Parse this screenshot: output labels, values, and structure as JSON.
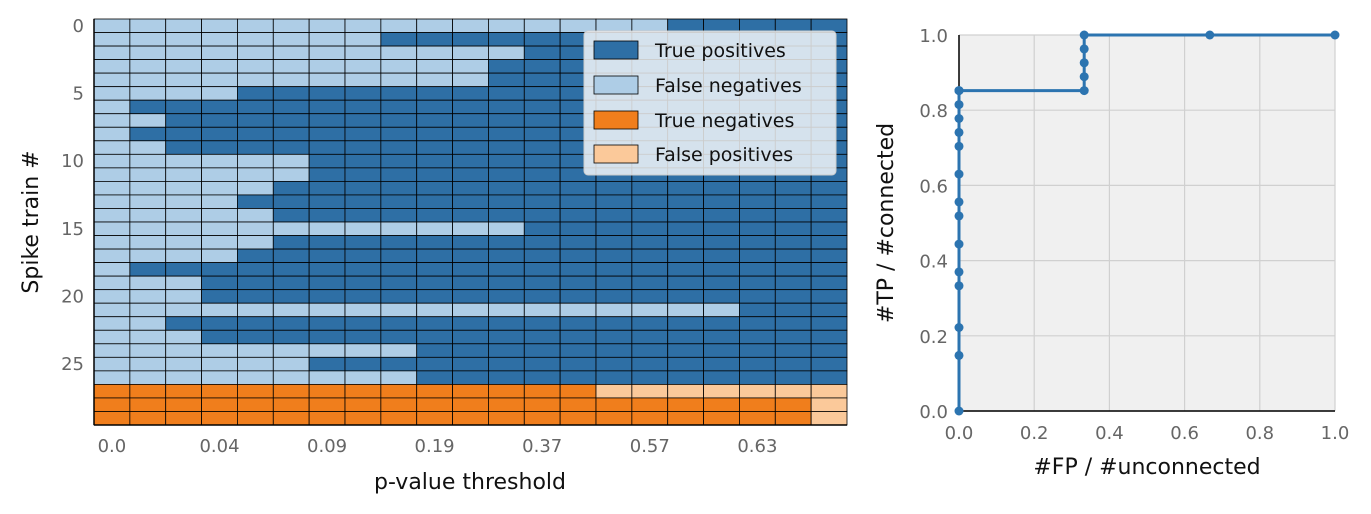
{
  "chart_data": [
    {
      "type": "heatmap",
      "xlabel": "p-value threshold",
      "ylabel": "Spike train #",
      "x_tick_labels": [
        "0.0",
        "0.04",
        "0.09",
        "0.19",
        "0.37",
        "0.57",
        "0.63"
      ],
      "y_tick_labels": [
        "0",
        "5",
        "10",
        "15",
        "20",
        "25"
      ],
      "legend_placement": "top-right",
      "categories": [
        {
          "code": "TP",
          "name": "True positives",
          "color": "#2e6fa5"
        },
        {
          "code": "FN",
          "name": "False negatives",
          "color": "#aecde6"
        },
        {
          "code": "TN",
          "name": "True negatives",
          "color": "#f07e1c"
        },
        {
          "code": "FP",
          "name": "False positives",
          "color": "#fbc99a"
        }
      ],
      "n_columns": 21,
      "first_positive_column": [
        16,
        8,
        12,
        11,
        11,
        4,
        1,
        2,
        1,
        2,
        6,
        6,
        5,
        4,
        5,
        12,
        5,
        4,
        1,
        3,
        3,
        18,
        2,
        3,
        9,
        6,
        9
      ],
      "first_false_positive_column": [
        14,
        20,
        20
      ]
    },
    {
      "type": "line",
      "xlabel": "#FP / #unconnected",
      "ylabel": "#TP / #connected",
      "xlim": [
        0,
        1
      ],
      "ylim": [
        0,
        1
      ],
      "x_tick_labels": [
        "0.0",
        "0.2",
        "0.4",
        "0.6",
        "0.8",
        "1.0"
      ],
      "y_tick_labels": [
        "0.0",
        "0.2",
        "0.4",
        "0.6",
        "0.8",
        "1.0"
      ],
      "grid": true,
      "color": "#2c74b0",
      "x": [
        0,
        0,
        0,
        0,
        0,
        0,
        0,
        0,
        0,
        0,
        0,
        0,
        0,
        0,
        0,
        0.333,
        0.333,
        0.333,
        0.333,
        0.333,
        0.667,
        1.0
      ],
      "y": [
        0,
        0.148,
        0.222,
        0.333,
        0.37,
        0.444,
        0.519,
        0.556,
        0.63,
        0.704,
        0.741,
        0.778,
        0.815,
        0.852,
        0.852,
        0.852,
        0.889,
        0.926,
        0.963,
        1.0,
        1.0,
        1.0
      ]
    }
  ]
}
